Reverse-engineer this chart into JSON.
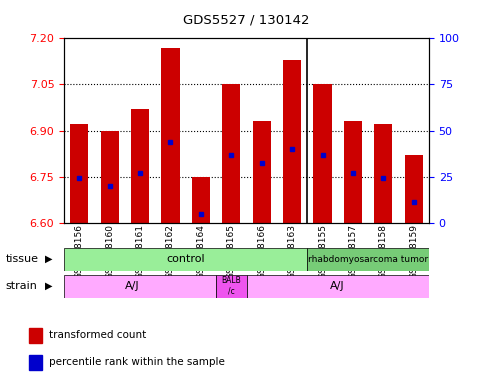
{
  "title": "GDS5527 / 130142",
  "samples": [
    "GSM738156",
    "GSM738160",
    "GSM738161",
    "GSM738162",
    "GSM738164",
    "GSM738165",
    "GSM738166",
    "GSM738163",
    "GSM738155",
    "GSM738157",
    "GSM738158",
    "GSM738159"
  ],
  "bar_bottoms": [
    6.6,
    6.6,
    6.6,
    6.6,
    6.6,
    6.6,
    6.6,
    6.6,
    6.6,
    6.6,
    6.6,
    6.6
  ],
  "bar_tops": [
    6.92,
    6.9,
    6.97,
    7.17,
    6.75,
    7.05,
    6.93,
    7.13,
    7.05,
    6.93,
    6.92,
    6.82
  ],
  "blue_dot_y": [
    6.745,
    6.718,
    6.762,
    6.862,
    6.628,
    6.82,
    6.793,
    6.84,
    6.82,
    6.762,
    6.745,
    6.668
  ],
  "ylim": [
    6.6,
    7.2
  ],
  "yticks_left": [
    6.6,
    6.75,
    6.9,
    7.05,
    7.2
  ],
  "yticks_right": [
    0,
    25,
    50,
    75,
    100
  ],
  "bar_color": "#cc0000",
  "dot_color": "#0000cc",
  "tissue_control_color": "#99ee99",
  "tissue_tumor_color": "#77cc77",
  "strain_aj_color": "#ffaaff",
  "strain_balb_color": "#ee55ee",
  "legend_items": [
    {
      "color": "#cc0000",
      "label": "transformed count"
    },
    {
      "color": "#0000cc",
      "label": "percentile rank within the sample"
    }
  ]
}
